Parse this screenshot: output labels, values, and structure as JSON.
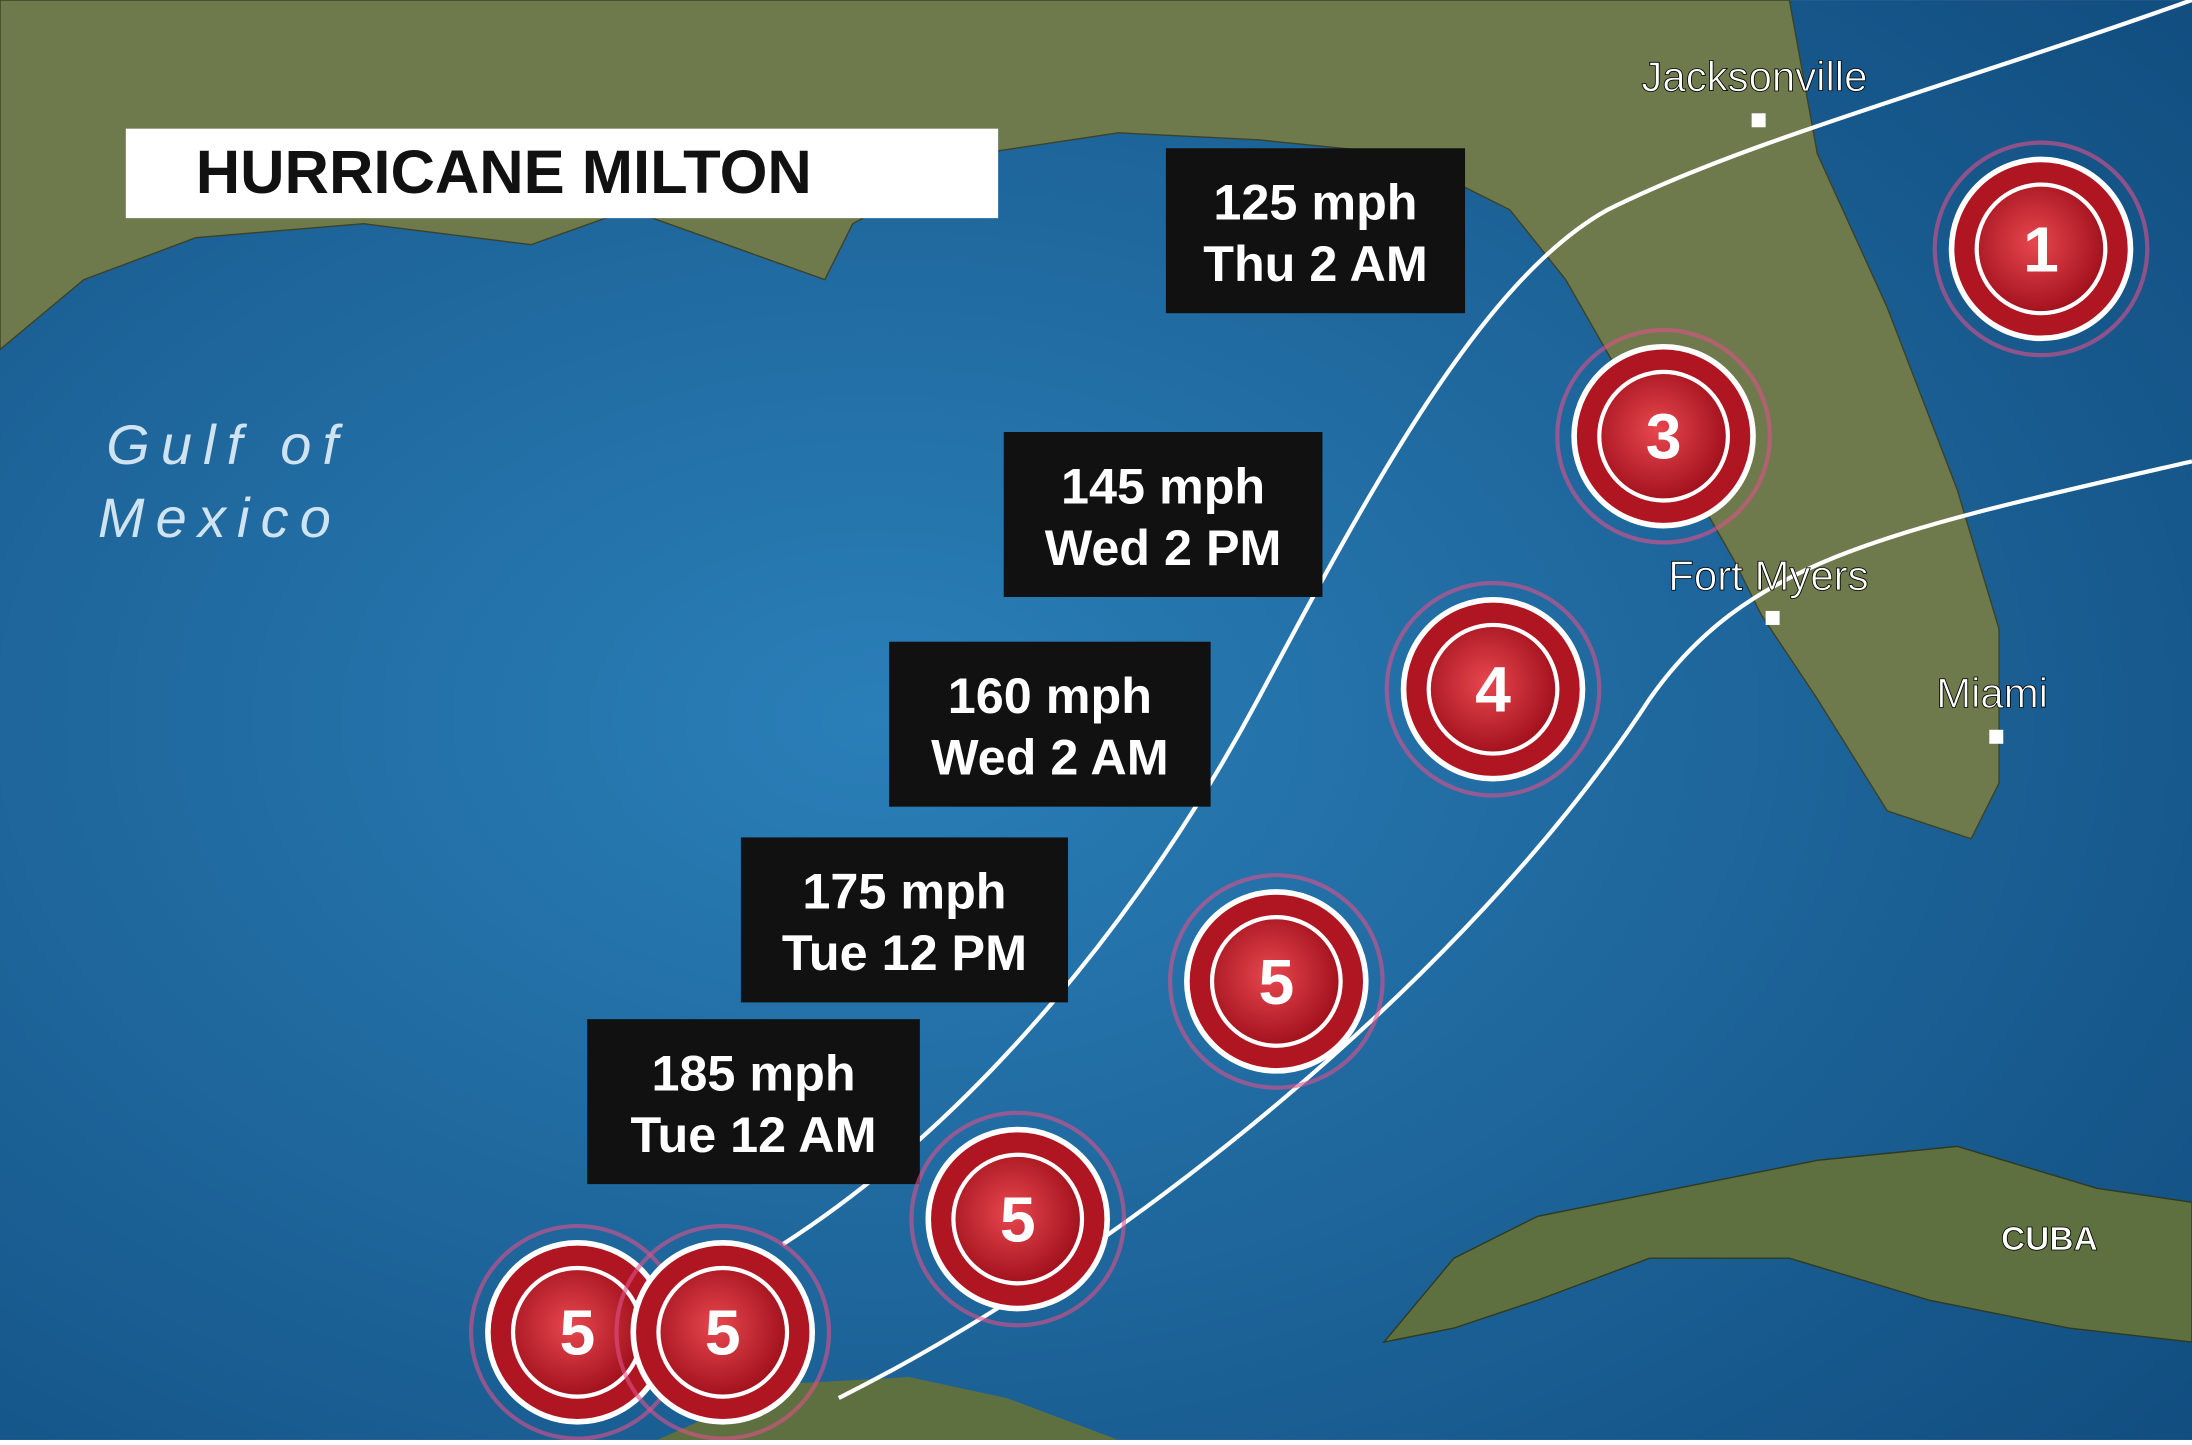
{
  "title": "HURRICANE MILTON",
  "water_label": {
    "line1": "Gulf of",
    "line2": "Mexico"
  },
  "forecasts": [
    {
      "speed": "125 mph",
      "time": "Thu 2 AM"
    },
    {
      "speed": "145 mph",
      "time": "Wed 2 PM"
    },
    {
      "speed": "160 mph",
      "time": "Wed 2 AM"
    },
    {
      "speed": "175 mph",
      "time": "Tue 12 PM"
    },
    {
      "speed": "185 mph",
      "time": "Tue 12 AM"
    }
  ],
  "cities": [
    "Jacksonville",
    "Fort Myers",
    "Miami",
    "CUBA"
  ],
  "markers": [
    5,
    5,
    5,
    5,
    4,
    3,
    1
  ]
}
